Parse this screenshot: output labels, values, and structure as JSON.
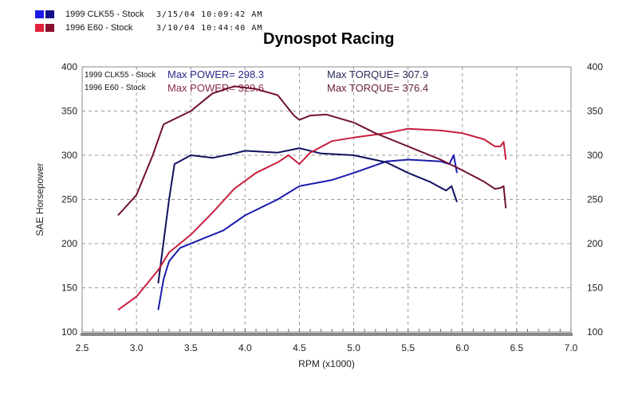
{
  "legend": [
    {
      "name": "1999 CLK55 - Stock",
      "date": "3/15/04 10:09:42 AM",
      "power_color": "#1a1ae6",
      "torque_color": "#10108a"
    },
    {
      "name": "1996 E60 - Stock",
      "date": "3/10/04 10:44:40 AM",
      "power_color": "#e0203a",
      "torque_color": "#8a1030"
    }
  ],
  "chart_data": {
    "type": "line",
    "title": "Dynospot Racing",
    "xlabel": "RPM (x1000)",
    "ylabel": "SAE Horsepower",
    "xlim": [
      2.5,
      7.0
    ],
    "ylim": [
      100,
      400
    ],
    "xticks": [
      "2.5",
      "3.0",
      "3.5",
      "4.0",
      "4.5",
      "5.0",
      "5.5",
      "6.0",
      "6.5",
      "7.0"
    ],
    "yticks": [
      "100",
      "150",
      "200",
      "250",
      "300",
      "350",
      "400"
    ],
    "grid": true,
    "inner_legend": [
      "1999 CLK55 - Stock",
      "1996 E60 - Stock"
    ],
    "annotations": [
      {
        "text": "Max POWER= 298.3",
        "color": "#2a2a8a"
      },
      {
        "text": "Max TORQUE= 307.9",
        "color": "#2a2a5a"
      },
      {
        "text": "Max POWER= 329.6",
        "color": "#8a2a50"
      },
      {
        "text": "Max TORQUE= 376.4",
        "color": "#6a2040"
      }
    ],
    "series": [
      {
        "name": "1999 CLK55 - Stock Power",
        "color": "#1a1ab0",
        "x": [
          3.2,
          3.25,
          3.3,
          3.4,
          3.6,
          3.8,
          4.0,
          4.3,
          4.5,
          4.8,
          5.0,
          5.3,
          5.5,
          5.8,
          5.88,
          5.92,
          5.95
        ],
        "y": [
          125,
          160,
          180,
          195,
          205,
          215,
          232,
          250,
          265,
          272,
          280,
          293,
          295,
          293,
          290,
          300,
          280
        ]
      },
      {
        "name": "1999 CLK55 - Stock Torque",
        "color": "#101060",
        "x": [
          3.2,
          3.3,
          3.35,
          3.5,
          3.7,
          3.9,
          4.0,
          4.3,
          4.5,
          4.7,
          5.0,
          5.3,
          5.5,
          5.7,
          5.85,
          5.9,
          5.95
        ],
        "y": [
          155,
          250,
          290,
          300,
          297,
          302,
          305,
          303,
          308,
          302,
          300,
          292,
          280,
          270,
          260,
          265,
          247
        ]
      },
      {
        "name": "1996 E60 - Stock Power",
        "color": "#c81e3c",
        "x": [
          2.83,
          3.0,
          3.2,
          3.3,
          3.5,
          3.7,
          3.9,
          4.1,
          4.3,
          4.4,
          4.5,
          4.6,
          4.8,
          5.0,
          5.3,
          5.5,
          5.8,
          6.0,
          6.2,
          6.3,
          6.35,
          6.38,
          6.4
        ],
        "y": [
          125,
          140,
          170,
          190,
          210,
          235,
          262,
          280,
          292,
          300,
          290,
          303,
          316,
          320,
          325,
          330,
          328,
          325,
          318,
          310,
          310,
          315,
          295
        ]
      },
      {
        "name": "1996 E60 - Stock Torque",
        "color": "#701030",
        "x": [
          2.83,
          3.0,
          3.15,
          3.25,
          3.5,
          3.7,
          3.9,
          4.1,
          4.3,
          4.45,
          4.5,
          4.6,
          4.75,
          5.0,
          5.2,
          5.5,
          5.8,
          6.0,
          6.2,
          6.3,
          6.35,
          6.38,
          6.4
        ],
        "y": [
          232,
          255,
          300,
          335,
          350,
          370,
          378,
          375,
          368,
          345,
          340,
          345,
          346,
          337,
          325,
          310,
          295,
          283,
          270,
          262,
          263,
          265,
          240
        ]
      }
    ]
  }
}
